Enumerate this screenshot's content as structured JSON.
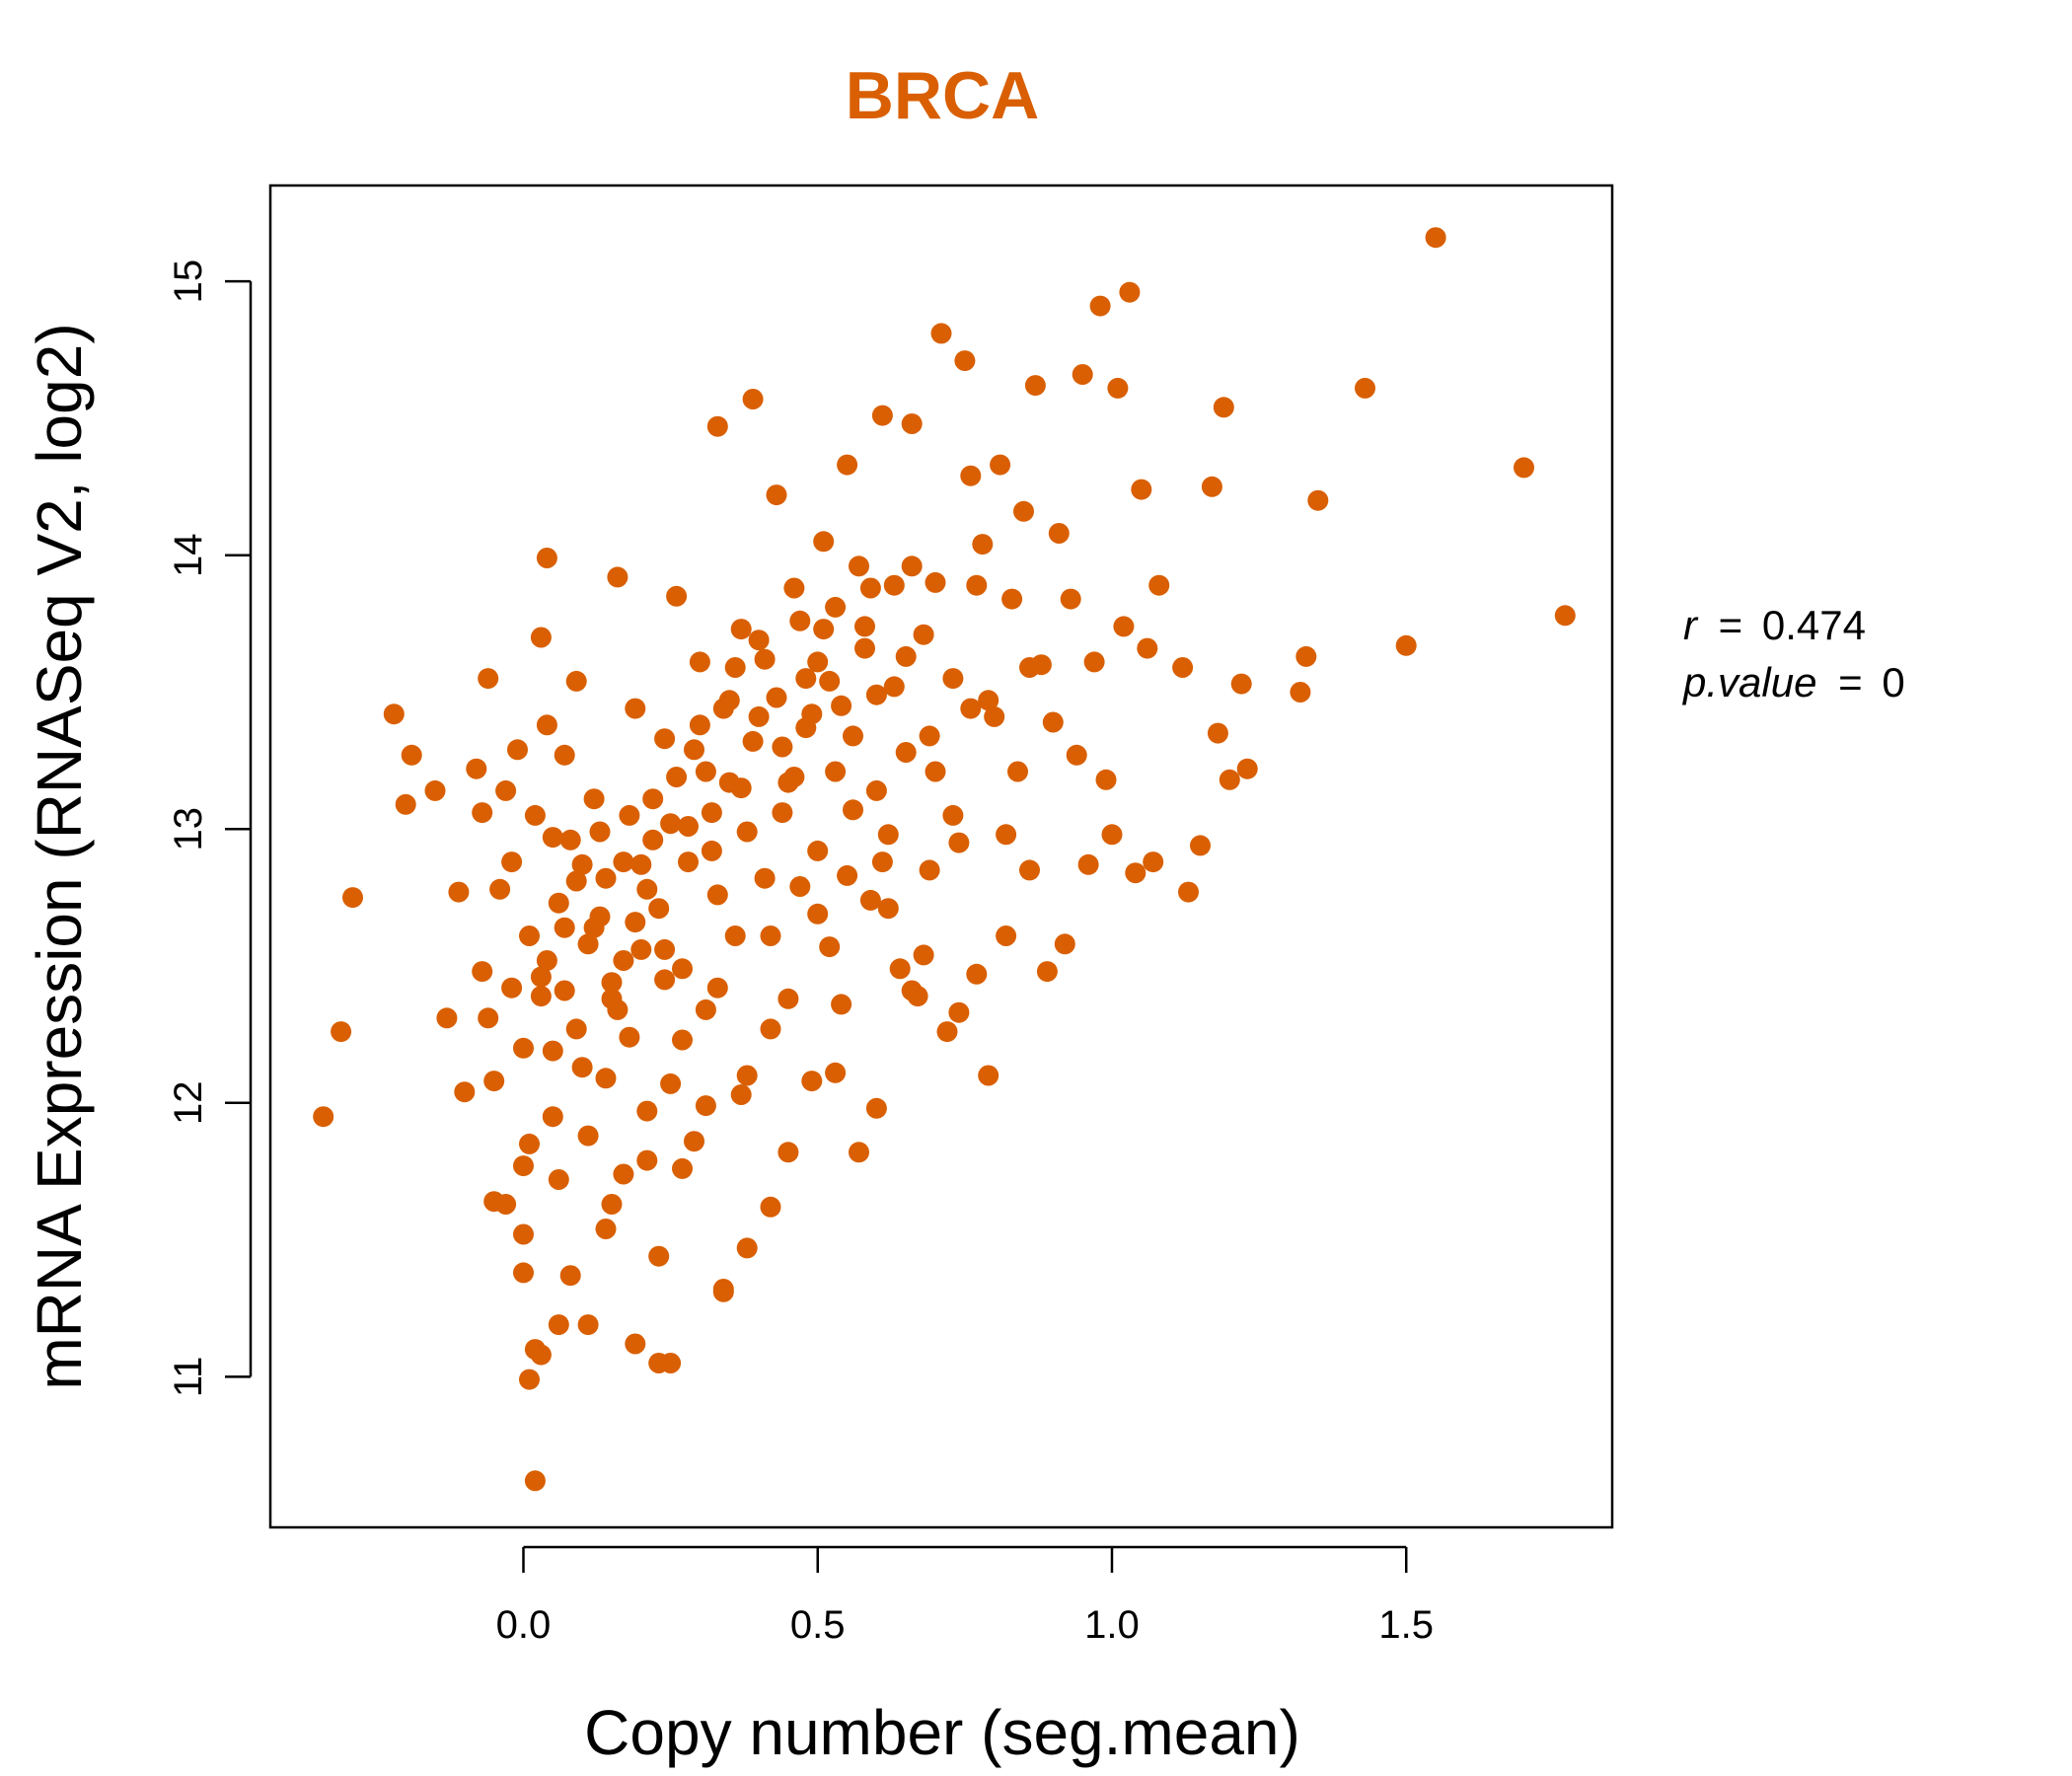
{
  "chart_data": {
    "type": "scatter",
    "title": "BRCA",
    "xlabel": "Copy number (seg.mean)",
    "ylabel": "mRNA Expression (RNASeq V2, log2)",
    "xlim": [
      -0.43,
      1.85
    ],
    "ylim": [
      10.45,
      15.35
    ],
    "x_ticks": [
      "0.0",
      "0.5",
      "1.0",
      "1.5"
    ],
    "x_tick_values": [
      0,
      0.5,
      1.0,
      1.5
    ],
    "y_ticks": [
      "11",
      "12",
      "13",
      "14",
      "15"
    ],
    "y_tick_values": [
      11,
      12,
      13,
      14,
      15
    ],
    "grid": false,
    "legend": "none",
    "point_color": "#D95F02",
    "annotations": {
      "r_label": "r",
      "r_value": "0.474",
      "p_label": "p.value",
      "p_value": "0",
      "equals": "="
    },
    "points": [
      [
        -0.34,
        11.95
      ],
      [
        -0.31,
        12.26
      ],
      [
        -0.29,
        12.75
      ],
      [
        -0.22,
        13.42
      ],
      [
        -0.2,
        13.09
      ],
      [
        -0.19,
        13.27
      ],
      [
        -0.15,
        13.14
      ],
      [
        -0.13,
        12.31
      ],
      [
        -0.11,
        12.77
      ],
      [
        -0.1,
        12.04
      ],
      [
        -0.08,
        13.22
      ],
      [
        -0.07,
        13.06
      ],
      [
        -0.07,
        12.48
      ],
      [
        -0.06,
        12.31
      ],
      [
        -0.06,
        13.55
      ],
      [
        -0.05,
        11.64
      ],
      [
        -0.05,
        12.08
      ],
      [
        -0.04,
        12.78
      ],
      [
        -0.03,
        11.63
      ],
      [
        -0.02,
        12.88
      ],
      [
        -0.01,
        13.29
      ],
      [
        0.0,
        11.52
      ],
      [
        0.0,
        11.38
      ],
      [
        0.01,
        11.85
      ],
      [
        0.01,
        12.61
      ],
      [
        0.02,
        11.1
      ],
      [
        0.02,
        13.05
      ],
      [
        0.03,
        12.46
      ],
      [
        0.03,
        13.7
      ],
      [
        0.04,
        13.99
      ],
      [
        0.05,
        12.19
      ],
      [
        0.05,
        12.97
      ],
      [
        0.06,
        11.72
      ],
      [
        0.07,
        12.41
      ],
      [
        0.07,
        13.27
      ],
      [
        0.08,
        11.37
      ],
      [
        0.09,
        12.81
      ],
      [
        0.09,
        13.54
      ],
      [
        0.1,
        12.13
      ],
      [
        0.11,
        11.19
      ],
      [
        0.12,
        13.11
      ],
      [
        0.13,
        12.68
      ],
      [
        0.14,
        11.54
      ],
      [
        0.15,
        12.38
      ],
      [
        0.16,
        13.92
      ],
      [
        0.17,
        12.88
      ],
      [
        0.17,
        11.74
      ],
      [
        0.18,
        12.24
      ],
      [
        0.19,
        13.44
      ],
      [
        0.2,
        12.56
      ],
      [
        0.21,
        11.97
      ],
      [
        0.22,
        13.11
      ],
      [
        0.23,
        12.71
      ],
      [
        0.23,
        11.44
      ],
      [
        0.24,
        13.33
      ],
      [
        0.25,
        12.07
      ],
      [
        0.26,
        13.85
      ],
      [
        0.27,
        12.49
      ],
      [
        0.28,
        13.01
      ],
      [
        0.29,
        11.86
      ],
      [
        0.3,
        13.61
      ],
      [
        0.31,
        12.34
      ],
      [
        0.32,
        12.92
      ],
      [
        0.33,
        14.47
      ],
      [
        0.34,
        11.32
      ],
      [
        0.35,
        13.17
      ],
      [
        0.36,
        12.61
      ],
      [
        0.37,
        13.73
      ],
      [
        0.38,
        12.1
      ],
      [
        0.39,
        14.57
      ],
      [
        0.4,
        13.41
      ],
      [
        0.41,
        12.82
      ],
      [
        0.42,
        11.62
      ],
      [
        0.43,
        14.22
      ],
      [
        0.44,
        13.06
      ],
      [
        0.45,
        12.38
      ],
      [
        0.46,
        13.88
      ],
      [
        0.47,
        12.79
      ],
      [
        0.48,
        13.37
      ],
      [
        0.49,
        12.08
      ],
      [
        0.5,
        13.61
      ],
      [
        0.51,
        14.05
      ],
      [
        0.52,
        12.57
      ],
      [
        0.53,
        13.21
      ],
      [
        0.54,
        12.36
      ],
      [
        0.55,
        14.33
      ],
      [
        0.56,
        13.07
      ],
      [
        0.57,
        11.82
      ],
      [
        0.58,
        13.74
      ],
      [
        0.59,
        12.74
      ],
      [
        0.6,
        13.49
      ],
      [
        0.61,
        14.51
      ],
      [
        0.62,
        12.98
      ],
      [
        0.63,
        13.89
      ],
      [
        0.64,
        12.49
      ],
      [
        0.65,
        13.28
      ],
      [
        0.66,
        14.48
      ],
      [
        0.67,
        12.39
      ],
      [
        0.68,
        13.71
      ],
      [
        0.69,
        12.85
      ],
      [
        0.7,
        13.21
      ],
      [
        0.71,
        14.81
      ],
      [
        0.72,
        12.26
      ],
      [
        0.73,
        13.55
      ],
      [
        0.74,
        12.95
      ],
      [
        0.75,
        14.71
      ],
      [
        0.76,
        13.44
      ],
      [
        0.77,
        12.47
      ],
      [
        0.78,
        14.04
      ],
      [
        0.79,
        12.1
      ],
      [
        0.8,
        13.41
      ],
      [
        0.81,
        14.33
      ],
      [
        0.82,
        12.61
      ],
      [
        0.83,
        13.84
      ],
      [
        0.84,
        13.21
      ],
      [
        0.85,
        14.16
      ],
      [
        0.86,
        12.85
      ],
      [
        0.87,
        14.62
      ],
      [
        0.88,
        13.6
      ],
      [
        0.89,
        12.48
      ],
      [
        0.9,
        13.39
      ],
      [
        0.91,
        14.08
      ],
      [
        0.92,
        12.58
      ],
      [
        0.93,
        13.84
      ],
      [
        0.94,
        13.27
      ],
      [
        0.95,
        14.66
      ],
      [
        0.96,
        12.87
      ],
      [
        0.97,
        13.61
      ],
      [
        0.98,
        14.91
      ],
      [
        0.99,
        13.18
      ],
      [
        1.0,
        12.98
      ],
      [
        1.01,
        14.61
      ],
      [
        1.02,
        13.74
      ],
      [
        1.03,
        14.96
      ],
      [
        1.04,
        12.84
      ],
      [
        1.05,
        14.24
      ],
      [
        1.06,
        13.66
      ],
      [
        1.07,
        12.88
      ],
      [
        1.08,
        13.89
      ],
      [
        1.12,
        13.59
      ],
      [
        1.13,
        12.77
      ],
      [
        1.15,
        12.94
      ],
      [
        1.17,
        14.25
      ],
      [
        1.18,
        13.35
      ],
      [
        1.19,
        14.54
      ],
      [
        1.2,
        13.18
      ],
      [
        1.22,
        13.53
      ],
      [
        1.23,
        13.22
      ],
      [
        1.32,
        13.5
      ],
      [
        1.33,
        13.63
      ],
      [
        1.35,
        14.2
      ],
      [
        1.43,
        14.61
      ],
      [
        1.5,
        13.67
      ],
      [
        1.55,
        15.16
      ],
      [
        1.7,
        14.32
      ],
      [
        1.77,
        13.78
      ],
      [
        0.02,
        10.62
      ],
      [
        0.01,
        10.99
      ],
      [
        0.03,
        11.08
      ],
      [
        0.06,
        11.19
      ],
      [
        0.19,
        11.12
      ],
      [
        0.23,
        11.05
      ],
      [
        0.25,
        11.05
      ],
      [
        0.34,
        11.31
      ],
      [
        0.38,
        11.47
      ],
      [
        0.0,
        11.77
      ],
      [
        0.04,
        12.52
      ],
      [
        0.08,
        12.96
      ],
      [
        0.12,
        12.64
      ],
      [
        0.14,
        12.09
      ],
      [
        0.18,
        13.05
      ],
      [
        0.2,
        12.87
      ],
      [
        0.24,
        12.45
      ],
      [
        0.27,
        12.23
      ],
      [
        0.3,
        13.38
      ],
      [
        0.33,
        12.76
      ],
      [
        0.35,
        13.47
      ],
      [
        0.38,
        12.99
      ],
      [
        0.4,
        13.69
      ],
      [
        0.42,
        12.61
      ],
      [
        0.45,
        13.17
      ],
      [
        0.47,
        13.76
      ],
      [
        0.5,
        12.92
      ],
      [
        0.52,
        13.54
      ],
      [
        0.55,
        12.83
      ],
      [
        0.57,
        13.96
      ],
      [
        0.6,
        13.14
      ],
      [
        0.62,
        12.71
      ],
      [
        0.65,
        13.63
      ],
      [
        0.68,
        12.54
      ],
      [
        0.7,
        13.9
      ],
      [
        0.73,
        13.05
      ],
      [
        0.76,
        14.29
      ],
      [
        0.79,
        13.47
      ],
      [
        0.82,
        12.98
      ],
      [
        -0.02,
        12.42
      ],
      [
        0.06,
        12.73
      ],
      [
        0.1,
        12.87
      ],
      [
        0.15,
        12.44
      ],
      [
        0.19,
        12.66
      ],
      [
        0.22,
        12.96
      ],
      [
        0.26,
        13.19
      ],
      [
        0.29,
        13.29
      ],
      [
        0.32,
        13.06
      ],
      [
        0.36,
        13.59
      ],
      [
        0.39,
        13.32
      ],
      [
        0.43,
        13.48
      ],
      [
        0.46,
        13.19
      ],
      [
        0.49,
        13.42
      ],
      [
        0.53,
        13.81
      ],
      [
        0.56,
        13.34
      ],
      [
        0.59,
        13.88
      ],
      [
        0.63,
        13.52
      ],
      [
        0.66,
        13.96
      ],
      [
        0.0,
        12.2
      ],
      [
        0.03,
        12.39
      ],
      [
        0.07,
        12.64
      ],
      [
        0.11,
        12.58
      ],
      [
        0.14,
        12.82
      ],
      [
        0.17,
        12.52
      ],
      [
        0.21,
        12.78
      ],
      [
        0.25,
        13.02
      ],
      [
        0.28,
        12.88
      ],
      [
        0.31,
        13.21
      ],
      [
        0.34,
        13.44
      ],
      [
        0.37,
        13.15
      ],
      [
        0.41,
        13.62
      ],
      [
        0.44,
        13.3
      ],
      [
        0.48,
        13.55
      ],
      [
        0.51,
        13.73
      ],
      [
        0.54,
        13.45
      ],
      [
        0.58,
        13.66
      ],
      [
        -0.03,
        13.14
      ],
      [
        0.04,
        13.38
      ],
      [
        0.09,
        12.27
      ],
      [
        0.13,
        12.99
      ],
      [
        0.16,
        12.34
      ],
      [
        0.24,
        12.56
      ],
      [
        0.33,
        12.42
      ],
      [
        0.42,
        12.27
      ],
      [
        0.5,
        12.69
      ],
      [
        0.61,
        12.88
      ],
      [
        0.69,
        13.34
      ],
      [
        0.77,
        13.89
      ],
      [
        0.86,
        13.59
      ],
      [
        0.05,
        11.95
      ],
      [
        0.11,
        11.88
      ],
      [
        0.15,
        11.63
      ],
      [
        0.21,
        11.79
      ],
      [
        0.27,
        11.76
      ],
      [
        0.31,
        11.99
      ],
      [
        0.37,
        12.03
      ],
      [
        0.45,
        11.82
      ],
      [
        0.53,
        12.11
      ],
      [
        0.6,
        11.98
      ],
      [
        0.66,
        12.41
      ],
      [
        0.74,
        12.33
      ]
    ]
  }
}
